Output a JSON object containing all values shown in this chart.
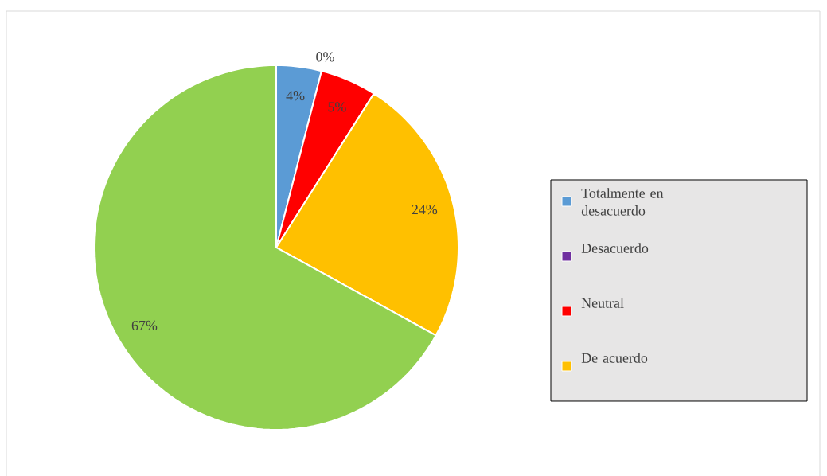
{
  "chart_data": {
    "type": "pie",
    "categories": [
      "Totalmente en desacuerdo",
      "Desacuerdo",
      "Neutral",
      "De acuerdo",
      null
    ],
    "values": [
      4,
      0,
      5,
      24,
      67
    ],
    "colors": [
      "#5b9bd5",
      "#7030a0",
      "#ff0000",
      "#ffc000",
      "#92d050"
    ],
    "value_labels": [
      "4%",
      "0%",
      "5%",
      "24%",
      "67%"
    ],
    "legend": "right"
  }
}
